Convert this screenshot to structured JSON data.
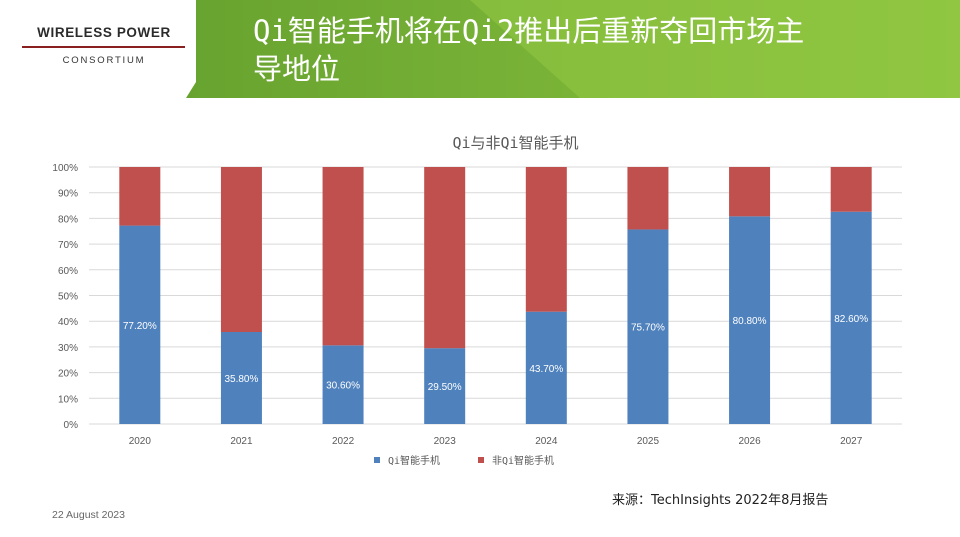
{
  "brand": {
    "name": "WIRELESS POWER",
    "subtitle": "CONSORTIUM",
    "banner_color_dark": "#6aa42f",
    "banner_color_light": "#8dc63f"
  },
  "slide": {
    "title_line1": "Qi智能手机将在Qi2推出后重新夺回市场主",
    "title_line2": "导地位",
    "source": "来源：TechInsights 2022年8月报告",
    "date": "22 August 2023"
  },
  "chart_data": {
    "type": "bar",
    "stacked": true,
    "title": "Qi与非Qi智能手机",
    "categories": [
      "2020",
      "2021",
      "2022",
      "2023",
      "2024",
      "2025",
      "2026",
      "2027"
    ],
    "series": [
      {
        "name": "Qi智能手机",
        "color": "#4f81bd",
        "values": [
          77.2,
          35.8,
          30.6,
          29.5,
          43.7,
          75.7,
          80.8,
          82.6
        ],
        "labels": [
          "77.20%",
          "35.80%",
          "30.60%",
          "29.50%",
          "43.70%",
          "75.70%",
          "80.80%",
          "82.60%"
        ]
      },
      {
        "name": "非Qi智能手机",
        "color": "#c0504d",
        "values": [
          22.8,
          64.2,
          69.4,
          70.5,
          56.3,
          24.3,
          19.2,
          17.4
        ]
      }
    ],
    "yticks": [
      "0%",
      "10%",
      "20%",
      "30%",
      "40%",
      "50%",
      "60%",
      "70%",
      "80%",
      "90%",
      "100%"
    ],
    "ylim": [
      0,
      100
    ],
    "grid": true,
    "legend_position": "bottom"
  }
}
